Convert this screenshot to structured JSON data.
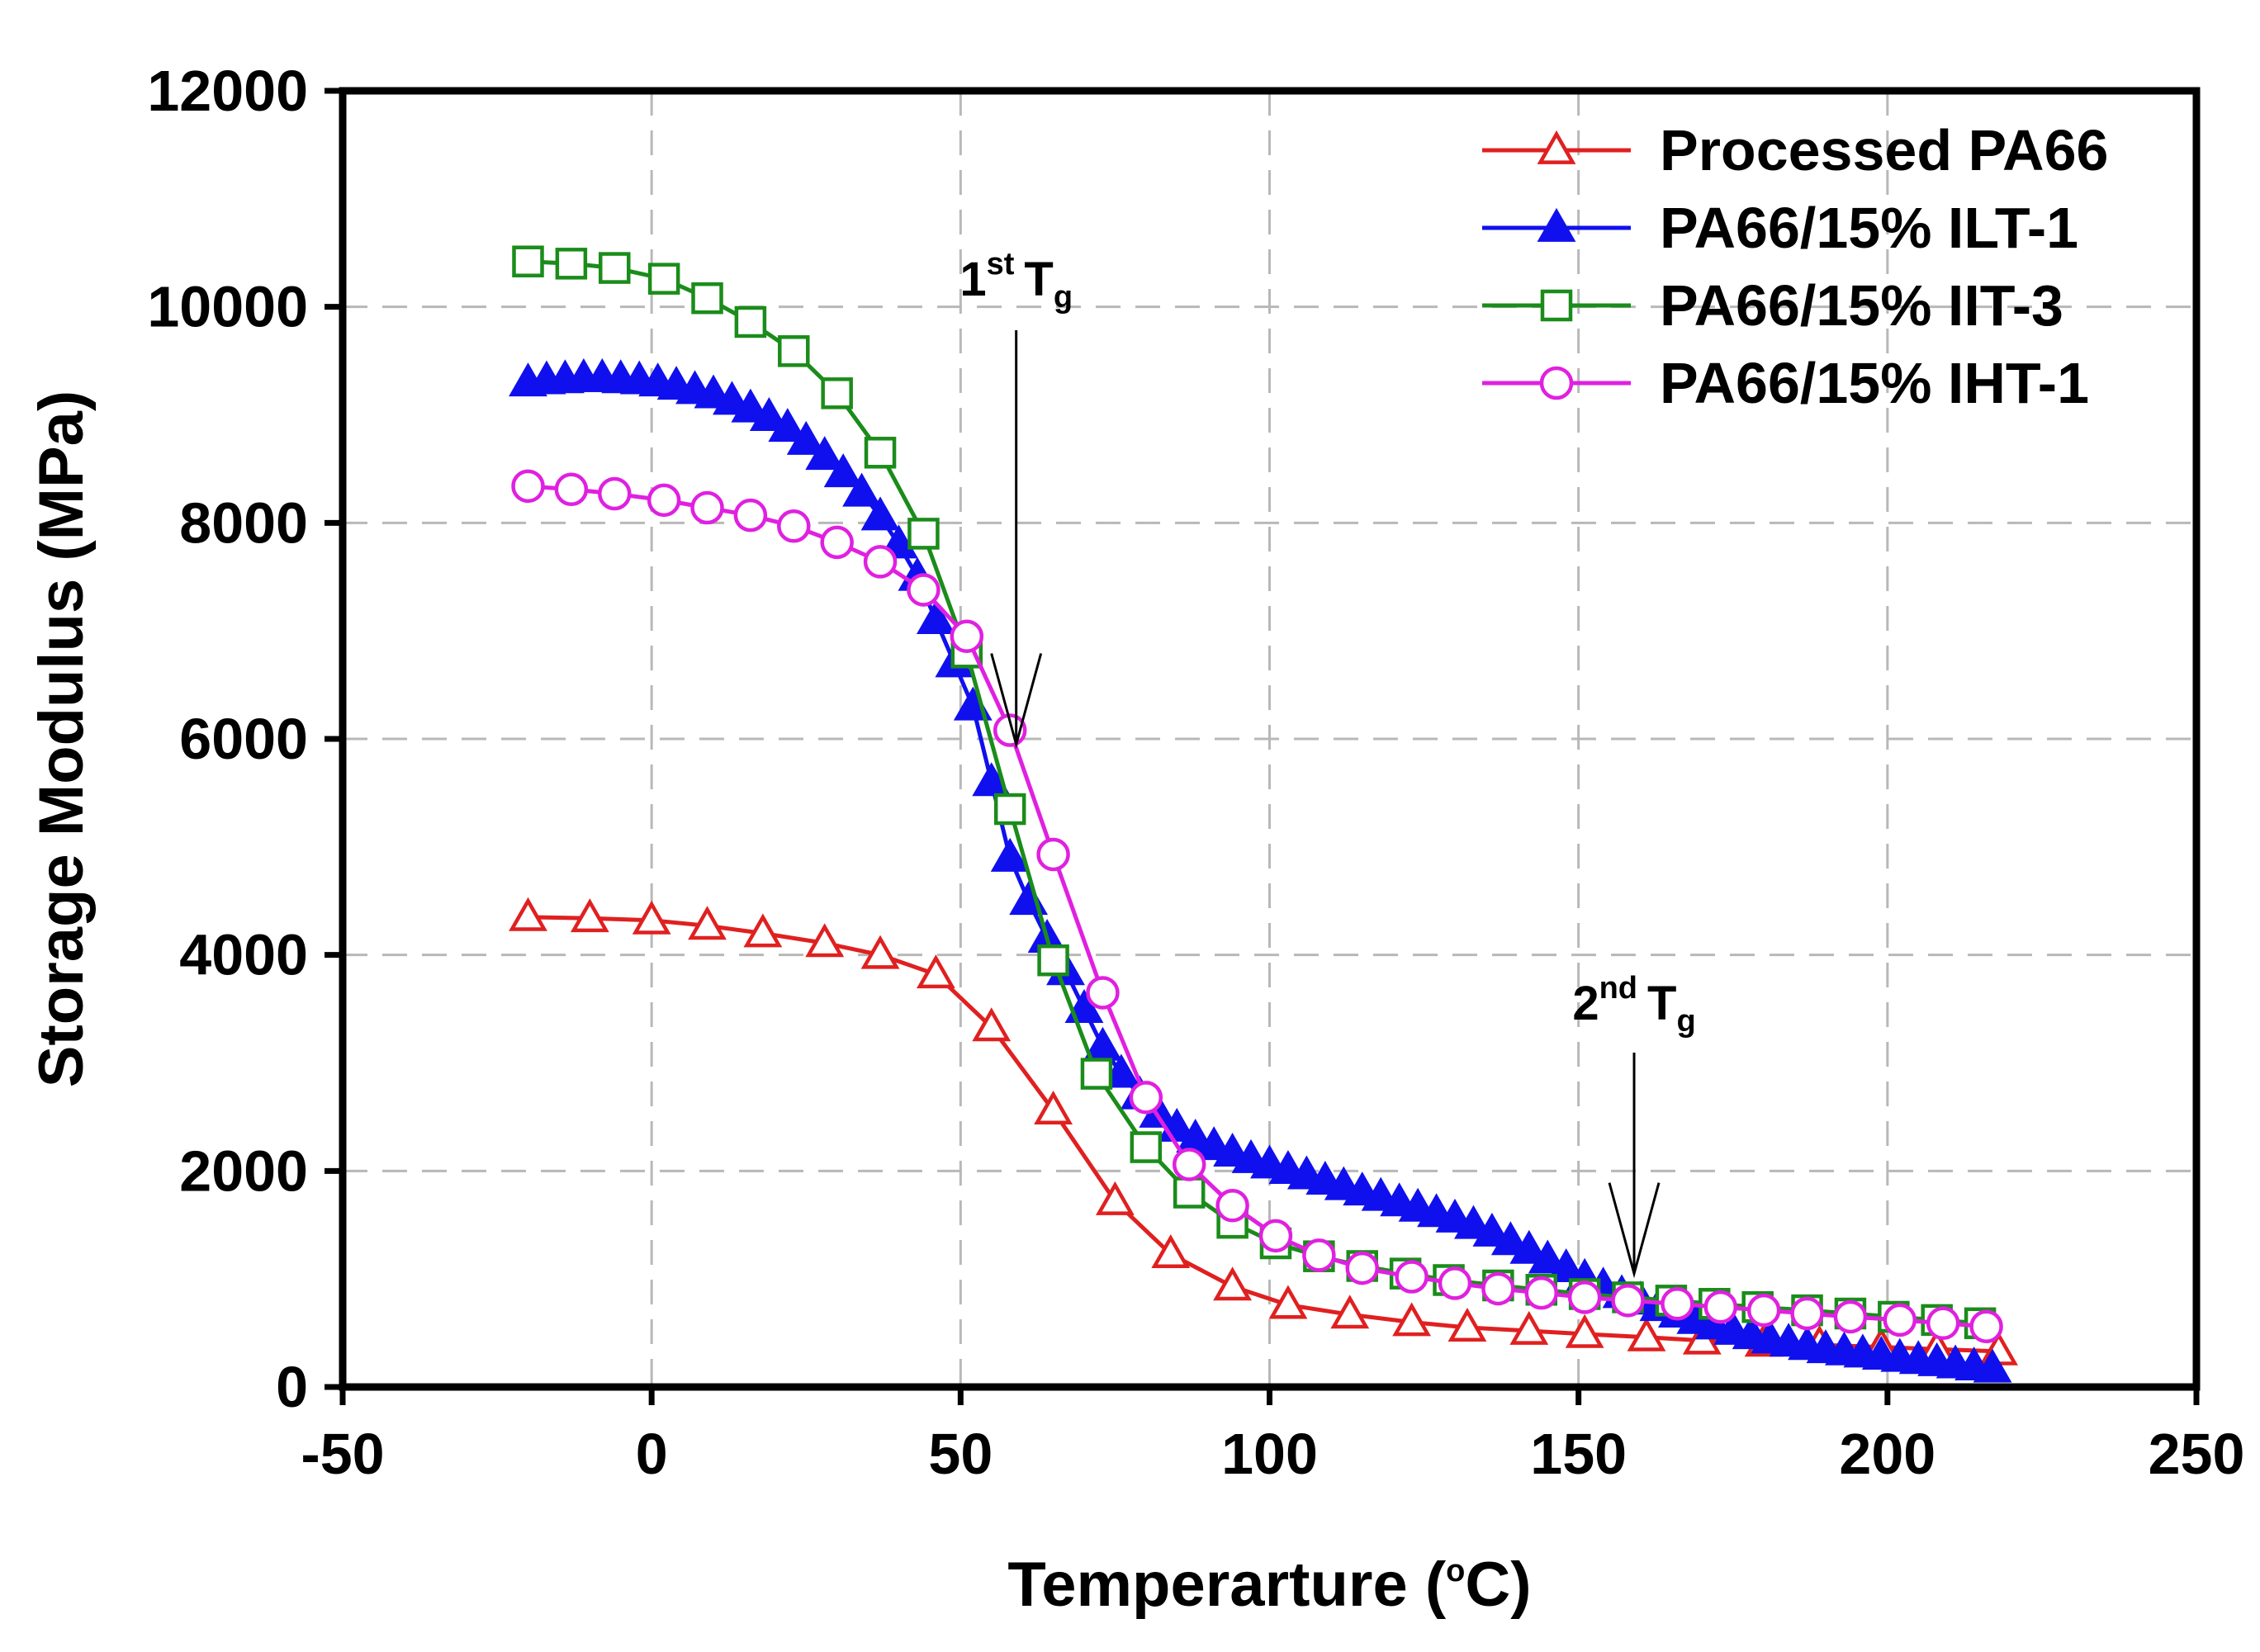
{
  "chart_data": {
    "type": "line",
    "xlabel": "Temperarture (",
    "xlabel_unit_sup": "o",
    "xlabel_unit_tail": "C)",
    "ylabel": "Storage Modulus (MPa)",
    "xlim": [
      -50,
      250
    ],
    "ylim": [
      0,
      12000
    ],
    "xticks": [
      -50,
      0,
      50,
      100,
      150,
      200,
      250
    ],
    "yticks": [
      0,
      2000,
      4000,
      6000,
      8000,
      10000,
      12000
    ],
    "grid": true,
    "legend_position": "top-right",
    "series": [
      {
        "name": "Processed PA66",
        "color": "#e02020",
        "marker": "triangle-open",
        "x": [
          -20,
          -10,
          0,
          9,
          18,
          28,
          37,
          46,
          55,
          65,
          75,
          84,
          94,
          103,
          113,
          123,
          132,
          142,
          151,
          161,
          170,
          180,
          189,
          199,
          208,
          218
        ],
        "y": [
          4350,
          4340,
          4320,
          4270,
          4200,
          4110,
          4000,
          3820,
          3330,
          2560,
          1720,
          1230,
          930,
          760,
          670,
          600,
          550,
          520,
          490,
          460,
          430,
          410,
          390,
          370,
          350,
          330
        ]
      },
      {
        "name": "PA66/15% ILT-1",
        "color": "#1010ee",
        "marker": "triangle-filled",
        "x": [
          -20,
          -17,
          -14,
          -11,
          -8,
          -5,
          -2,
          1,
          4,
          7,
          10,
          13,
          16,
          19,
          22,
          25,
          28,
          31,
          34,
          37,
          40,
          43,
          46,
          49,
          52,
          55,
          58,
          61,
          64,
          67,
          70,
          73,
          76,
          79,
          82,
          85,
          88,
          91,
          94,
          97,
          100,
          103,
          106,
          109,
          112,
          115,
          118,
          121,
          124,
          127,
          130,
          133,
          136,
          139,
          142,
          145,
          148,
          151,
          154,
          157,
          160,
          163,
          166,
          169,
          172,
          175,
          178,
          181,
          184,
          187,
          190,
          193,
          196,
          199,
          202,
          205,
          208,
          211,
          214,
          217
        ],
        "y": [
          9300,
          9320,
          9330,
          9340,
          9340,
          9330,
          9320,
          9300,
          9270,
          9230,
          9190,
          9130,
          9060,
          8980,
          8880,
          8760,
          8620,
          8460,
          8280,
          8060,
          7800,
          7500,
          7100,
          6700,
          6300,
          5600,
          4900,
          4500,
          4150,
          3850,
          3500,
          3150,
          2900,
          2700,
          2530,
          2400,
          2300,
          2230,
          2170,
          2110,
          2060,
          2010,
          1960,
          1910,
          1860,
          1810,
          1760,
          1710,
          1660,
          1610,
          1560,
          1500,
          1430,
          1350,
          1270,
          1180,
          1100,
          1010,
          930,
          860,
          800,
          740,
          680,
          620,
          570,
          520,
          480,
          440,
          410,
          380,
          350,
          330,
          310,
          290,
          270,
          250,
          230,
          210,
          190,
          170
        ]
      },
      {
        "name": "PA66/15% IIT-3",
        "color": "#1a8c1a",
        "marker": "square-open",
        "x": [
          -20,
          -13,
          -6,
          2,
          9,
          16,
          23,
          30,
          37,
          44,
          51,
          58,
          65,
          72,
          80,
          87,
          94,
          101,
          108,
          115,
          122,
          129,
          137,
          144,
          151,
          158,
          165,
          172,
          179,
          187,
          194,
          201,
          208,
          215
        ],
        "y": [
          10420,
          10400,
          10360,
          10260,
          10080,
          9860,
          9590,
          9200,
          8650,
          7900,
          6800,
          5350,
          3950,
          2900,
          2220,
          1800,
          1520,
          1330,
          1210,
          1120,
          1050,
          990,
          940,
          900,
          860,
          830,
          800,
          770,
          740,
          710,
          680,
          650,
          620,
          590
        ]
      },
      {
        "name": "PA66/15% IHT-1",
        "color": "#e020e0",
        "marker": "circle-open",
        "x": [
          -20,
          -13,
          -6,
          2,
          9,
          16,
          23,
          30,
          37,
          44,
          51,
          58,
          65,
          73,
          80,
          87,
          94,
          101,
          108,
          115,
          123,
          130,
          137,
          144,
          151,
          158,
          166,
          173,
          180,
          187,
          194,
          202,
          209,
          216
        ],
        "y": [
          8340,
          8310,
          8270,
          8210,
          8140,
          8070,
          7970,
          7820,
          7640,
          7380,
          6950,
          6080,
          4930,
          3650,
          2680,
          2060,
          1680,
          1400,
          1220,
          1100,
          1020,
          960,
          910,
          870,
          830,
          800,
          770,
          740,
          710,
          680,
          650,
          620,
          590,
          560
        ]
      }
    ],
    "annotations": [
      {
        "label": "1",
        "sup": "st",
        "main": "T",
        "sub": "g",
        "x": 59,
        "y": 5950
      },
      {
        "label": "2",
        "sup": "nd",
        "main": "T",
        "sub": "g",
        "x": 159,
        "y": 1050
      }
    ]
  }
}
